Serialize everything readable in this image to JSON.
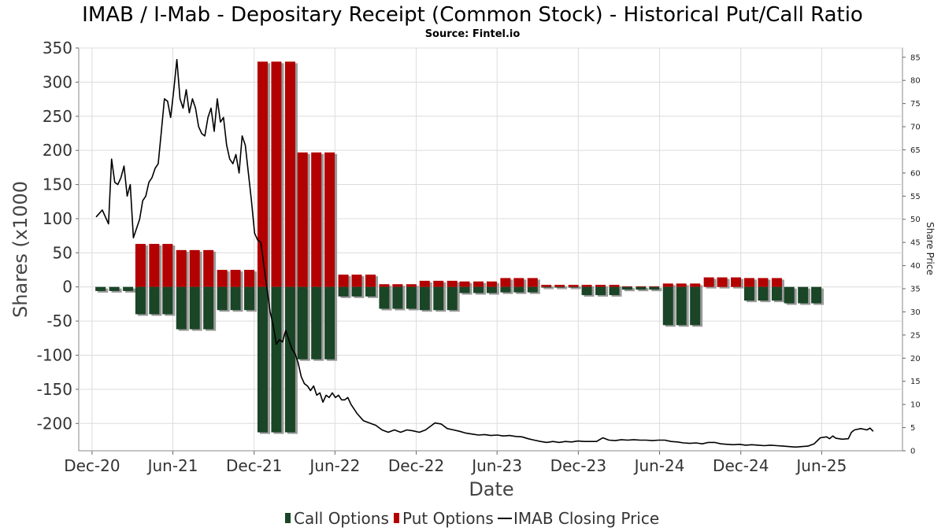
{
  "title": "IMAB / I-Mab - Depositary Receipt (Common Stock) - Historical Put/Call Ratio",
  "subtitle": "Source: Fintel.io",
  "chart_data": {
    "type": "bar",
    "title": "IMAB / I-Mab - Depositary Receipt (Common Stock) - Historical Put/Call Ratio",
    "subtitle": "Source: Fintel.io",
    "xlabel": "Date",
    "ylabel": "Shares (x1000",
    "y2label": "Share Price",
    "ylim": [
      -240,
      350
    ],
    "y2lim": [
      0,
      87
    ],
    "yticks": [
      350,
      300,
      250,
      200,
      150,
      100,
      50,
      0,
      -50,
      -100,
      -150,
      -200
    ],
    "y2ticks": [
      0,
      5,
      10,
      15,
      20,
      25,
      30,
      35,
      40,
      45,
      50,
      55,
      60,
      65,
      70,
      75,
      80,
      85
    ],
    "xlim": [
      "2020-11-01",
      "2025-11-30"
    ],
    "xticks": [
      {
        "date": "2020-12-01",
        "label": "Dec-20"
      },
      {
        "date": "2021-06-01",
        "label": "Jun-21"
      },
      {
        "date": "2021-12-01",
        "label": "Dec-21"
      },
      {
        "date": "2022-06-01",
        "label": "Jun-22"
      },
      {
        "date": "2022-12-01",
        "label": "Dec-22"
      },
      {
        "date": "2023-06-01",
        "label": "Jun-23"
      },
      {
        "date": "2023-12-01",
        "label": "Dec-23"
      },
      {
        "date": "2024-06-01",
        "label": "Jun-24"
      },
      {
        "date": "2024-12-01",
        "label": "Dec-24"
      },
      {
        "date": "2025-06-01",
        "label": "Jun-25"
      }
    ],
    "grid": true,
    "legend_position": "bottom",
    "legend": [
      {
        "name": "Call Options",
        "color": "#1a4526",
        "kind": "bar"
      },
      {
        "name": "Put Options",
        "color": "#b30000",
        "kind": "bar"
      },
      {
        "name": "IMAB Closing Price",
        "color": "#000000",
        "kind": "line"
      }
    ],
    "bars": [
      {
        "date": "2020-12-20",
        "calls": -6,
        "puts": 0
      },
      {
        "date": "2021-01-20",
        "calls": -6,
        "puts": 0
      },
      {
        "date": "2021-02-20",
        "calls": -6,
        "puts": 0
      },
      {
        "date": "2021-03-20",
        "calls": -40,
        "puts": 63
      },
      {
        "date": "2021-04-20",
        "calls": -40,
        "puts": 63
      },
      {
        "date": "2021-05-20",
        "calls": -40,
        "puts": 63
      },
      {
        "date": "2021-06-20",
        "calls": -62,
        "puts": 54
      },
      {
        "date": "2021-07-20",
        "calls": -62,
        "puts": 54
      },
      {
        "date": "2021-08-20",
        "calls": -62,
        "puts": 54
      },
      {
        "date": "2021-09-20",
        "calls": -34,
        "puts": 25
      },
      {
        "date": "2021-10-20",
        "calls": -34,
        "puts": 25
      },
      {
        "date": "2021-11-20",
        "calls": -34,
        "puts": 25
      },
      {
        "date": "2021-12-20",
        "calls": -213,
        "puts": 330
      },
      {
        "date": "2022-01-20",
        "calls": -213,
        "puts": 330
      },
      {
        "date": "2022-02-20",
        "calls": -213,
        "puts": 330
      },
      {
        "date": "2022-03-20",
        "calls": -106,
        "puts": 197
      },
      {
        "date": "2022-04-20",
        "calls": -106,
        "puts": 197
      },
      {
        "date": "2022-05-20",
        "calls": -106,
        "puts": 197
      },
      {
        "date": "2022-06-20",
        "calls": -14,
        "puts": 18
      },
      {
        "date": "2022-07-20",
        "calls": -14,
        "puts": 18
      },
      {
        "date": "2022-08-20",
        "calls": -14,
        "puts": 18
      },
      {
        "date": "2022-09-20",
        "calls": -32,
        "puts": 4
      },
      {
        "date": "2022-10-20",
        "calls": -32,
        "puts": 4
      },
      {
        "date": "2022-11-20",
        "calls": -32,
        "puts": 4
      },
      {
        "date": "2022-12-20",
        "calls": -34,
        "puts": 9
      },
      {
        "date": "2023-01-20",
        "calls": -34,
        "puts": 9
      },
      {
        "date": "2023-02-20",
        "calls": -34,
        "puts": 9
      },
      {
        "date": "2023-03-20",
        "calls": -9,
        "puts": 8
      },
      {
        "date": "2023-04-20",
        "calls": -9,
        "puts": 8
      },
      {
        "date": "2023-05-20",
        "calls": -9,
        "puts": 8
      },
      {
        "date": "2023-06-20",
        "calls": -8,
        "puts": 13
      },
      {
        "date": "2023-07-20",
        "calls": -8,
        "puts": 13
      },
      {
        "date": "2023-08-20",
        "calls": -8,
        "puts": 13
      },
      {
        "date": "2023-09-20",
        "calls": -1,
        "puts": 3
      },
      {
        "date": "2023-10-20",
        "calls": -1,
        "puts": 3
      },
      {
        "date": "2023-11-20",
        "calls": -1,
        "puts": 3
      },
      {
        "date": "2023-12-20",
        "calls": -12,
        "puts": 3
      },
      {
        "date": "2024-01-20",
        "calls": -12,
        "puts": 3
      },
      {
        "date": "2024-02-20",
        "calls": -12,
        "puts": 3
      },
      {
        "date": "2024-03-20",
        "calls": -4,
        "puts": 1
      },
      {
        "date": "2024-04-20",
        "calls": -4,
        "puts": 1
      },
      {
        "date": "2024-05-20",
        "calls": -4,
        "puts": 1
      },
      {
        "date": "2024-06-20",
        "calls": -56,
        "puts": 5
      },
      {
        "date": "2024-07-20",
        "calls": -56,
        "puts": 5
      },
      {
        "date": "2024-08-20",
        "calls": -56,
        "puts": 5
      },
      {
        "date": "2024-09-20",
        "calls": 0,
        "puts": 14
      },
      {
        "date": "2024-10-20",
        "calls": 0,
        "puts": 14
      },
      {
        "date": "2024-11-20",
        "calls": 0,
        "puts": 14
      },
      {
        "date": "2024-12-20",
        "calls": -20,
        "puts": 13
      },
      {
        "date": "2025-01-20",
        "calls": -20,
        "puts": 13
      },
      {
        "date": "2025-02-20",
        "calls": -20,
        "puts": 13
      },
      {
        "date": "2025-03-20",
        "calls": -24,
        "puts": 0
      },
      {
        "date": "2025-04-20",
        "calls": -24,
        "puts": 0
      },
      {
        "date": "2025-05-20",
        "calls": -24,
        "puts": 0
      }
    ],
    "price": [
      [
        "2020-12-10",
        50.5
      ],
      [
        "2020-12-24",
        52
      ],
      [
        "2021-01-07",
        49
      ],
      [
        "2021-01-14",
        63
      ],
      [
        "2021-01-21",
        58
      ],
      [
        "2021-01-28",
        57.5
      ],
      [
        "2021-02-04",
        59
      ],
      [
        "2021-02-11",
        61.5
      ],
      [
        "2021-02-18",
        55
      ],
      [
        "2021-02-25",
        57.5
      ],
      [
        "2021-03-04",
        46
      ],
      [
        "2021-03-18",
        50
      ],
      [
        "2021-03-25",
        54
      ],
      [
        "2021-04-01",
        55
      ],
      [
        "2021-04-08",
        58
      ],
      [
        "2021-04-15",
        59
      ],
      [
        "2021-04-22",
        61
      ],
      [
        "2021-04-29",
        62
      ],
      [
        "2021-05-06",
        69
      ],
      [
        "2021-05-13",
        76
      ],
      [
        "2021-05-20",
        75.5
      ],
      [
        "2021-05-27",
        72
      ],
      [
        "2021-06-03",
        78
      ],
      [
        "2021-06-10",
        84.5
      ],
      [
        "2021-06-17",
        76
      ],
      [
        "2021-06-24",
        74
      ],
      [
        "2021-07-01",
        78
      ],
      [
        "2021-07-08",
        73
      ],
      [
        "2021-07-15",
        76
      ],
      [
        "2021-07-22",
        74
      ],
      [
        "2021-07-29",
        70
      ],
      [
        "2021-08-05",
        68.5
      ],
      [
        "2021-08-12",
        68
      ],
      [
        "2021-08-19",
        72
      ],
      [
        "2021-08-26",
        74
      ],
      [
        "2021-09-02",
        69
      ],
      [
        "2021-09-09",
        76
      ],
      [
        "2021-09-16",
        71
      ],
      [
        "2021-09-23",
        72
      ],
      [
        "2021-09-30",
        66
      ],
      [
        "2021-10-07",
        63
      ],
      [
        "2021-10-14",
        62
      ],
      [
        "2021-10-21",
        64
      ],
      [
        "2021-10-28",
        60
      ],
      [
        "2021-11-04",
        68
      ],
      [
        "2021-11-11",
        66
      ],
      [
        "2021-11-18",
        60
      ],
      [
        "2021-11-25",
        54
      ],
      [
        "2021-12-02",
        47
      ],
      [
        "2021-12-09",
        45.5
      ],
      [
        "2021-12-16",
        45
      ],
      [
        "2021-12-23",
        40
      ],
      [
        "2021-12-30",
        35
      ],
      [
        "2022-01-06",
        30
      ],
      [
        "2022-01-13",
        27
      ],
      [
        "2022-01-20",
        23
      ],
      [
        "2022-01-27",
        24
      ],
      [
        "2022-02-03",
        23.5
      ],
      [
        "2022-02-10",
        26
      ],
      [
        "2022-02-17",
        24
      ],
      [
        "2022-02-24",
        22
      ],
      [
        "2022-03-03",
        21
      ],
      [
        "2022-03-10",
        19
      ],
      [
        "2022-03-17",
        16
      ],
      [
        "2022-03-24",
        14.5
      ],
      [
        "2022-03-31",
        14
      ],
      [
        "2022-04-07",
        13
      ],
      [
        "2022-04-14",
        14
      ],
      [
        "2022-04-21",
        12
      ],
      [
        "2022-04-28",
        12.5
      ],
      [
        "2022-05-05",
        10.5
      ],
      [
        "2022-05-12",
        12
      ],
      [
        "2022-05-19",
        11.5
      ],
      [
        "2022-05-26",
        12.5
      ],
      [
        "2022-06-02",
        11.5
      ],
      [
        "2022-06-09",
        12
      ],
      [
        "2022-06-16",
        11
      ],
      [
        "2022-06-23",
        11
      ],
      [
        "2022-06-30",
        11.5
      ],
      [
        "2022-07-07",
        10
      ],
      [
        "2022-07-21",
        8
      ],
      [
        "2022-08-04",
        6.5
      ],
      [
        "2022-08-18",
        6
      ],
      [
        "2022-09-01",
        5.5
      ],
      [
        "2022-09-15",
        4.5
      ],
      [
        "2022-09-29",
        4
      ],
      [
        "2022-10-13",
        4.5
      ],
      [
        "2022-10-27",
        4
      ],
      [
        "2022-11-10",
        4.5
      ],
      [
        "2022-11-24",
        4.3
      ],
      [
        "2022-12-08",
        4
      ],
      [
        "2022-12-22",
        4.5
      ],
      [
        "2023-01-05",
        5.5
      ],
      [
        "2023-01-12",
        6
      ],
      [
        "2023-01-26",
        5.8
      ],
      [
        "2023-02-09",
        4.8
      ],
      [
        "2023-02-23",
        4.5
      ],
      [
        "2023-03-09",
        4.2
      ],
      [
        "2023-03-23",
        3.8
      ],
      [
        "2023-04-06",
        3.6
      ],
      [
        "2023-04-20",
        3.4
      ],
      [
        "2023-05-04",
        3.5
      ],
      [
        "2023-05-18",
        3.3
      ],
      [
        "2023-06-01",
        3.4
      ],
      [
        "2023-06-15",
        3.2
      ],
      [
        "2023-06-29",
        3.3
      ],
      [
        "2023-07-13",
        3.1
      ],
      [
        "2023-07-27",
        3
      ],
      [
        "2023-08-10",
        2.6
      ],
      [
        "2023-08-24",
        2.3
      ],
      [
        "2023-09-07",
        2
      ],
      [
        "2023-09-21",
        1.8
      ],
      [
        "2023-10-05",
        2
      ],
      [
        "2023-10-19",
        1.8
      ],
      [
        "2023-11-02",
        2
      ],
      [
        "2023-11-16",
        1.9
      ],
      [
        "2023-11-30",
        2.1
      ],
      [
        "2023-12-14",
        2
      ],
      [
        "2023-12-28",
        2
      ],
      [
        "2024-01-11",
        2
      ],
      [
        "2024-01-25",
        2.8
      ],
      [
        "2024-02-08",
        2.3
      ],
      [
        "2024-02-22",
        2.2
      ],
      [
        "2024-03-07",
        2.4
      ],
      [
        "2024-03-21",
        2.3
      ],
      [
        "2024-04-04",
        2.4
      ],
      [
        "2024-04-18",
        2.3
      ],
      [
        "2024-05-02",
        2.3
      ],
      [
        "2024-05-16",
        2.2
      ],
      [
        "2024-05-30",
        2.3
      ],
      [
        "2024-06-13",
        2.3
      ],
      [
        "2024-06-27",
        2
      ],
      [
        "2024-07-11",
        1.9
      ],
      [
        "2024-07-25",
        1.7
      ],
      [
        "2024-08-08",
        1.6
      ],
      [
        "2024-08-22",
        1.7
      ],
      [
        "2024-09-05",
        1.5
      ],
      [
        "2024-09-19",
        1.8
      ],
      [
        "2024-10-03",
        1.8
      ],
      [
        "2024-10-17",
        1.5
      ],
      [
        "2024-10-31",
        1.4
      ],
      [
        "2024-11-14",
        1.3
      ],
      [
        "2024-11-28",
        1.4
      ],
      [
        "2024-12-12",
        1.2
      ],
      [
        "2024-12-26",
        1.3
      ],
      [
        "2025-01-09",
        1.2
      ],
      [
        "2025-01-23",
        1.1
      ],
      [
        "2025-02-06",
        1.2
      ],
      [
        "2025-02-20",
        1.1
      ],
      [
        "2025-03-06",
        1
      ],
      [
        "2025-03-20",
        0.9
      ],
      [
        "2025-04-03",
        0.8
      ],
      [
        "2025-04-17",
        0.9
      ],
      [
        "2025-05-01",
        1
      ],
      [
        "2025-05-15",
        1.5
      ],
      [
        "2025-05-29",
        2.8
      ],
      [
        "2025-06-12",
        3
      ],
      [
        "2025-06-19",
        2.6
      ],
      [
        "2025-06-26",
        3.2
      ],
      [
        "2025-07-03",
        2.7
      ],
      [
        "2025-07-17",
        2.5
      ],
      [
        "2025-07-31",
        2.6
      ],
      [
        "2025-08-07",
        4
      ],
      [
        "2025-08-14",
        4.5
      ],
      [
        "2025-08-28",
        4.8
      ],
      [
        "2025-09-11",
        4.5
      ],
      [
        "2025-09-18",
        4.9
      ],
      [
        "2025-09-25",
        4.2
      ]
    ]
  }
}
